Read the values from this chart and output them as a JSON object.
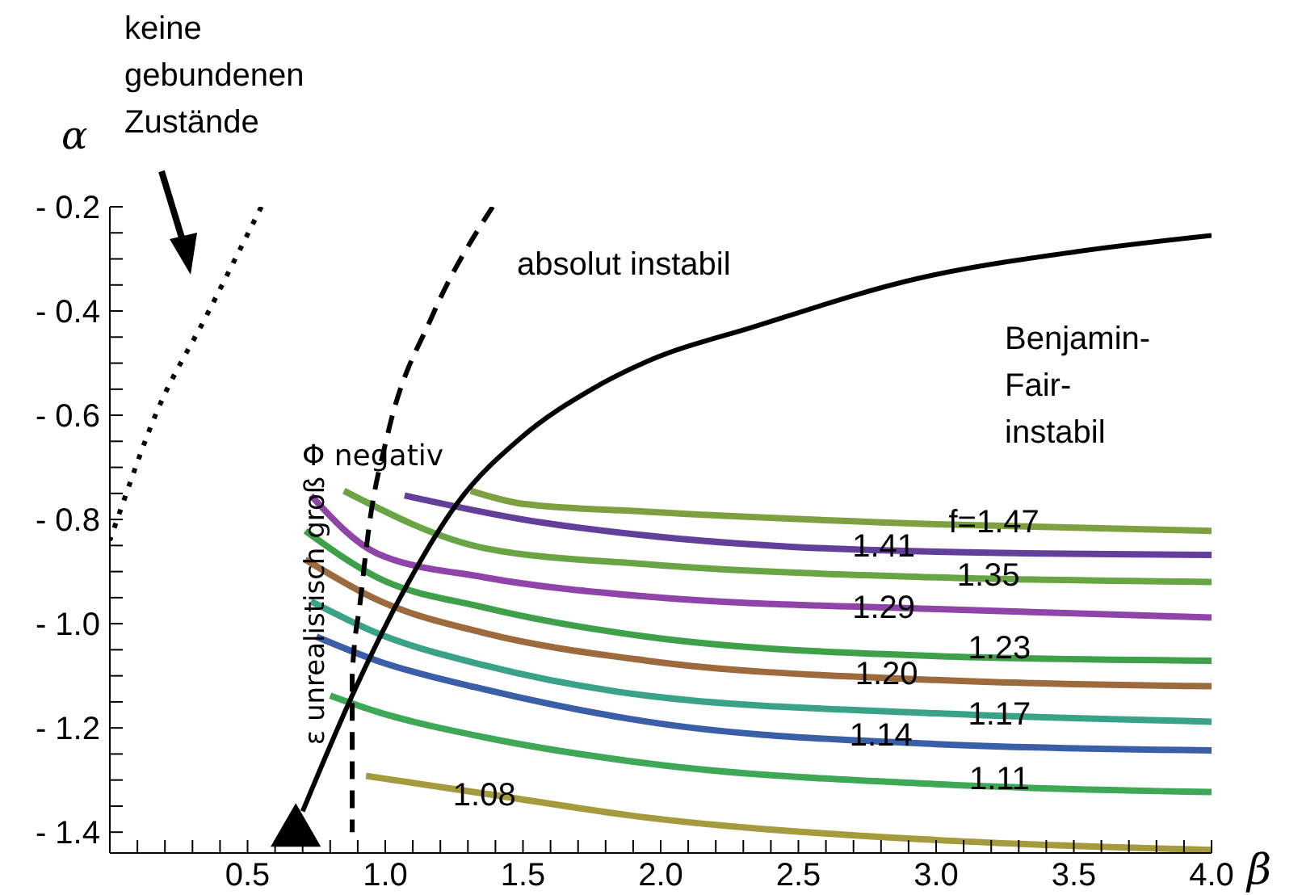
{
  "chart_data": {
    "type": "line",
    "xlabel": "β",
    "ylabel": "α",
    "xlim": [
      0,
      4
    ],
    "ylim": [
      -1.44,
      -0.2
    ],
    "xticks": [
      {
        "value": 0.1,
        "label": null
      },
      {
        "value": 0.2,
        "label": null
      },
      {
        "value": 0.3,
        "label": null
      },
      {
        "value": 0.4,
        "label": null
      },
      {
        "value": 0.5,
        "label": "0.5"
      },
      {
        "value": 0.6,
        "label": null
      },
      {
        "value": 0.7,
        "label": null
      },
      {
        "value": 0.8,
        "label": null
      },
      {
        "value": 0.9,
        "label": null
      },
      {
        "value": 1,
        "label": "1.0"
      },
      {
        "value": 1.1,
        "label": null
      },
      {
        "value": 1.2,
        "label": null
      },
      {
        "value": 1.3,
        "label": null
      },
      {
        "value": 1.4,
        "label": null
      },
      {
        "value": 1.5,
        "label": "1.5"
      },
      {
        "value": 1.6,
        "label": null
      },
      {
        "value": 1.7,
        "label": null
      },
      {
        "value": 1.8,
        "label": null
      },
      {
        "value": 1.9,
        "label": null
      },
      {
        "value": 2,
        "label": "2.0"
      },
      {
        "value": 2.1,
        "label": null
      },
      {
        "value": 2.2,
        "label": null
      },
      {
        "value": 2.3,
        "label": null
      },
      {
        "value": 2.4,
        "label": null
      },
      {
        "value": 2.5,
        "label": "2.5"
      },
      {
        "value": 2.6,
        "label": null
      },
      {
        "value": 2.7,
        "label": null
      },
      {
        "value": 2.8,
        "label": null
      },
      {
        "value": 2.9,
        "label": null
      },
      {
        "value": 3,
        "label": "3.0"
      },
      {
        "value": 3.1,
        "label": null
      },
      {
        "value": 3.2,
        "label": null
      },
      {
        "value": 3.3,
        "label": null
      },
      {
        "value": 3.4,
        "label": null
      },
      {
        "value": 3.5,
        "label": "3.5"
      },
      {
        "value": 3.6,
        "label": null
      },
      {
        "value": 3.7,
        "label": null
      },
      {
        "value": 3.8,
        "label": null
      },
      {
        "value": 3.9,
        "label": null
      },
      {
        "value": 4,
        "label": "4.0"
      }
    ],
    "yticks": [
      {
        "value": -1.4,
        "label": "- 1.4"
      },
      {
        "value": -1.35,
        "label": null
      },
      {
        "value": -1.3,
        "label": null
      },
      {
        "value": -1.25,
        "label": null
      },
      {
        "value": -1.2,
        "label": "- 1.2"
      },
      {
        "value": -1.15,
        "label": null
      },
      {
        "value": -1.1,
        "label": null
      },
      {
        "value": -1.05,
        "label": null
      },
      {
        "value": -1,
        "label": "- 1.0"
      },
      {
        "value": -0.95,
        "label": null
      },
      {
        "value": -0.9,
        "label": null
      },
      {
        "value": -0.85,
        "label": null
      },
      {
        "value": -0.8,
        "label": "- 0.8"
      },
      {
        "value": -0.75,
        "label": null
      },
      {
        "value": -0.7,
        "label": null
      },
      {
        "value": -0.65,
        "label": null
      },
      {
        "value": -0.6,
        "label": "- 0.6"
      },
      {
        "value": -0.55,
        "label": null
      },
      {
        "value": -0.5,
        "label": null
      },
      {
        "value": -0.45,
        "label": null
      },
      {
        "value": -0.4,
        "label": "- 0.4"
      },
      {
        "value": -0.35,
        "label": null
      },
      {
        "value": -0.3,
        "label": null
      },
      {
        "value": -0.25,
        "label": null
      },
      {
        "value": -0.2,
        "label": "- 0.2"
      }
    ],
    "series": [
      {
        "color": "#7fa040",
        "x": [
          1.31,
          1.5,
          1.95,
          3.0,
          4.0
        ],
        "values": [
          -0.745,
          -0.77,
          -0.785,
          -0.809,
          -0.822
        ]
      },
      {
        "color": "#633f9c",
        "x": [
          1.07,
          1.5,
          1.95,
          3.0,
          4.0
        ],
        "values": [
          -0.754,
          -0.8,
          -0.831,
          -0.862,
          -0.868
        ]
      },
      {
        "color": "#6aa545",
        "x": [
          0.85,
          1.36,
          1.95,
          3.0,
          4.0
        ],
        "values": [
          -0.745,
          -0.855,
          -0.886,
          -0.911,
          -0.92
        ]
      },
      {
        "color": "#8e44a8",
        "x": [
          0.73,
          0.97,
          1.36,
          1.95,
          3.0,
          4.0
        ],
        "values": [
          -0.754,
          -0.865,
          -0.911,
          -0.948,
          -0.972,
          -0.988
        ]
      },
      {
        "color": "#3fa04a",
        "x": [
          0.71,
          0.97,
          1.36,
          1.95,
          3.0,
          4.0
        ],
        "values": [
          -0.822,
          -0.911,
          -0.969,
          -1.025,
          -1.062,
          -1.071
        ]
      },
      {
        "color": "#9c6a3c",
        "x": [
          0.71,
          0.97,
          1.36,
          1.95,
          3.0,
          4.0
        ],
        "values": [
          -0.877,
          -0.954,
          -1.018,
          -1.071,
          -1.108,
          -1.12
        ]
      },
      {
        "color": "#3aa288",
        "x": [
          0.73,
          0.97,
          1.36,
          1.95,
          3.0,
          4.0
        ],
        "values": [
          -0.957,
          -1.018,
          -1.08,
          -1.138,
          -1.172,
          -1.188
        ]
      },
      {
        "color": "#3b5ea8",
        "x": [
          0.75,
          0.97,
          1.36,
          1.95,
          3.0,
          4.0
        ],
        "values": [
          -1.025,
          -1.071,
          -1.126,
          -1.188,
          -1.231,
          -1.243
        ]
      },
      {
        "color": "#3fa857",
        "x": [
          0.8,
          0.97,
          1.36,
          1.95,
          3.0,
          4.0
        ],
        "values": [
          -1.138,
          -1.169,
          -1.218,
          -1.268,
          -1.308,
          -1.323
        ]
      },
      {
        "color": "#a59a3c",
        "x": [
          0.93,
          1.36,
          1.95,
          3.0,
          4.0
        ],
        "values": [
          -1.292,
          -1.326,
          -1.372,
          -1.415,
          -1.434
        ]
      },
      {
        "color": "#000000",
        "x": [
          0.7,
          0.89,
          1.05,
          1.26,
          1.5,
          1.75,
          1.95,
          2.34,
          2.93,
          3.51,
          4.0
        ],
        "values": [
          -1.36,
          -1.126,
          -0.954,
          -0.77,
          -0.64,
          -0.55,
          -0.497,
          -0.43,
          -0.338,
          -0.286,
          -0.255
        ]
      },
      {
        "color": "#000000",
        "line_style": "dashed",
        "x": [
          1.39,
          1.17,
          1.01,
          0.94,
          0.91,
          0.88,
          0.88
        ],
        "values": [
          -0.2,
          -0.41,
          -0.634,
          -0.818,
          -0.954,
          -1.1,
          -1.4
        ]
      },
      {
        "color": "#000000",
        "line_style": "dotted",
        "x": [
          0.55,
          0.35,
          0.17,
          0.02,
          0
        ],
        "values": [
          -0.2,
          -0.41,
          -0.594,
          -0.81,
          -0.84
        ]
      },
      {
        "type": "scatter",
        "marker": "triangle",
        "color": "#000000",
        "x": [
          0.675
        ],
        "values": [
          -1.4
        ]
      }
    ],
    "annotations": [
      {
        "text": "f=1.47",
        "x": 3.21,
        "y": -0.809
      },
      {
        "text": "1.41",
        "x": 2.81,
        "y": -0.855
      },
      {
        "text": "1.35",
        "x": 3.19,
        "y": -0.911
      },
      {
        "text": "1.29",
        "x": 2.81,
        "y": -0.972
      },
      {
        "text": "1.23",
        "x": 3.23,
        "y": -1.049
      },
      {
        "text": "1.20",
        "x": 2.82,
        "y": -1.1
      },
      {
        "text": "1.17",
        "x": 3.23,
        "y": -1.178
      },
      {
        "text": "1.14",
        "x": 2.8,
        "y": -1.218
      },
      {
        "text": "1.11",
        "x": 3.23,
        "y": -1.302
      },
      {
        "text": "1.08",
        "x": 1.36,
        "y": -1.332
      },
      "keine gebundenen Zustände",
      "absolut instabil",
      "Φ negativ",
      "ε unrealistisch groß",
      "Benjamin-Fair-instabil"
    ]
  }
}
